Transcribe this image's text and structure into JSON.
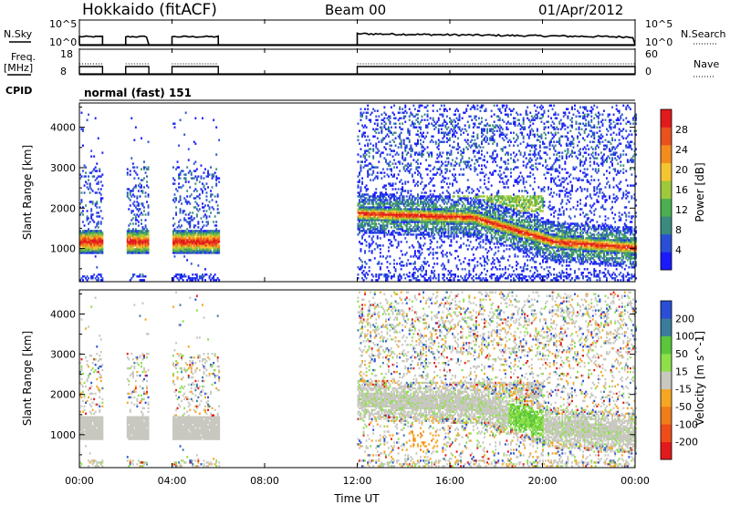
{
  "header": {
    "station": "Hokkaido (fitACF)",
    "beam": "Beam 00",
    "date": "01/Apr/2012"
  },
  "sky_panel": {
    "left_label": "N.Sky",
    "left_ticks": [
      "10^5",
      "10^0"
    ],
    "right_label": "N.Search",
    "right_ticks": [
      "10^5",
      "10^0"
    ]
  },
  "freq_panel": {
    "left_label_1": "Freq.",
    "left_label_2": "[MHz]",
    "left_ticks": [
      "18",
      "8"
    ],
    "right_label": "Nave",
    "right_ticks": [
      "60",
      "0"
    ]
  },
  "cpid_panel": {
    "label": "CPID",
    "mode_text": "normal (fast) 151"
  },
  "colors": {
    "power": [
      "#1a1aff",
      "#2a4fd6",
      "#3a8a7e",
      "#4caf50",
      "#9ec93c",
      "#f5c431",
      "#f28c1e",
      "#e8521e",
      "#e31a1c"
    ],
    "velocity_neg": [
      "#e31a1c",
      "#ee4d1a",
      "#f07c1a",
      "#f5a623"
    ],
    "velocity_mid": "#c8c8c0",
    "velocity_pos": [
      "#8ee04a",
      "#5ac63a",
      "#3b7c9c",
      "#2a4fd6"
    ]
  },
  "chart_data": [
    {
      "type": "heatmap",
      "title": "",
      "xlabel": "Time UT",
      "ylabel": "Slant Range [km]",
      "colorbar_label": "Power [dB]",
      "colorbar_ticks": [
        "28",
        "24",
        "20",
        "16",
        "12",
        "8",
        "4"
      ],
      "xlim": [
        0,
        24
      ],
      "ylim": [
        180,
        4600
      ],
      "x_ticks": [
        "00:00",
        "04:00",
        "08:00",
        "12:00",
        "16:00",
        "20:00",
        "00:00"
      ],
      "y_ticks": [
        "1000",
        "2000",
        "3000",
        "4000"
      ],
      "data_intervals_hours": [
        [
          0,
          1
        ],
        [
          2,
          3
        ],
        [
          4,
          6
        ],
        [
          12,
          24
        ]
      ],
      "main_echo_band_km": [
        [
          0,
          1100
        ],
        [
          12,
          1850
        ],
        [
          17,
          1750
        ],
        [
          20.5,
          1150
        ],
        [
          24,
          1000
        ]
      ]
    },
    {
      "type": "heatmap",
      "title": "",
      "xlabel": "Time UT",
      "ylabel": "Slant Range [km]",
      "colorbar_label": "Velocity [m s^-1]",
      "colorbar_ticks": [
        "200",
        "100",
        "50",
        "15",
        "-15",
        "-50",
        "-100",
        "-200"
      ],
      "xlim": [
        0,
        24
      ],
      "ylim": [
        180,
        4600
      ],
      "x_ticks": [
        "00:00",
        "04:00",
        "08:00",
        "12:00",
        "16:00",
        "20:00",
        "00:00"
      ],
      "y_ticks": [
        "1000",
        "2000",
        "3000",
        "4000"
      ],
      "data_intervals_hours": [
        [
          0,
          1
        ],
        [
          2,
          3
        ],
        [
          4,
          6
        ],
        [
          12,
          24
        ]
      ]
    }
  ],
  "x_axis": {
    "label": "Time UT"
  }
}
